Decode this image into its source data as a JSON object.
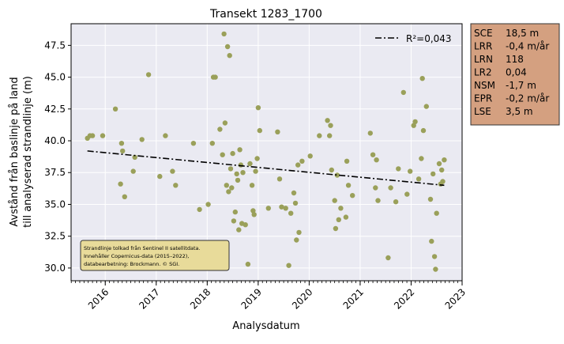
{
  "chart_data": {
    "type": "scatter",
    "title": "Transekt 1283_1700",
    "xlabel": "Analysdatum",
    "ylabel_lines": [
      "Avstånd från baslinje på land",
      "till analyserad strandlinje (m)"
    ],
    "x_domain": [
      "2015-05-01",
      "2023-01-01"
    ],
    "xlim": [
      2015.33,
      2023.0
    ],
    "ylim": [
      29.0,
      49.2
    ],
    "x_ticks": [
      "2016",
      "2017",
      "2018",
      "2019",
      "2020",
      "2021",
      "2022",
      "2023"
    ],
    "y_ticks": [
      "30.0",
      "32.5",
      "35.0",
      "37.5",
      "40.0",
      "42.5",
      "45.0",
      "47.5"
    ],
    "grid": true,
    "series": [
      {
        "type": "scatter",
        "color": "#9aa05a",
        "points": [
          [
            2015.65,
            40.2
          ],
          [
            2015.7,
            40.4
          ],
          [
            2015.75,
            40.4
          ],
          [
            2015.95,
            40.4
          ],
          [
            2016.2,
            42.5
          ],
          [
            2016.3,
            36.6
          ],
          [
            2016.32,
            39.8
          ],
          [
            2016.34,
            39.2
          ],
          [
            2016.38,
            35.6
          ],
          [
            2016.55,
            37.6
          ],
          [
            2016.58,
            38.7
          ],
          [
            2016.72,
            40.1
          ],
          [
            2016.85,
            45.2
          ],
          [
            2017.07,
            37.2
          ],
          [
            2017.18,
            40.4
          ],
          [
            2017.32,
            37.6
          ],
          [
            2017.38,
            36.5
          ],
          [
            2017.73,
            39.8
          ],
          [
            2017.85,
            34.6
          ],
          [
            2018.02,
            35.0
          ],
          [
            2018.1,
            39.8
          ],
          [
            2018.12,
            45.0
          ],
          [
            2018.16,
            45.0
          ],
          [
            2018.25,
            40.9
          ],
          [
            2018.3,
            38.9
          ],
          [
            2018.33,
            48.4
          ],
          [
            2018.35,
            41.4
          ],
          [
            2018.38,
            36.5
          ],
          [
            2018.4,
            47.4
          ],
          [
            2018.42,
            36.0
          ],
          [
            2018.44,
            46.7
          ],
          [
            2018.46,
            37.8
          ],
          [
            2018.48,
            36.3
          ],
          [
            2018.5,
            39.0
          ],
          [
            2018.52,
            33.7
          ],
          [
            2018.55,
            34.4
          ],
          [
            2018.58,
            37.4
          ],
          [
            2018.6,
            36.9
          ],
          [
            2018.62,
            33.0
          ],
          [
            2018.64,
            39.3
          ],
          [
            2018.66,
            38.1
          ],
          [
            2018.68,
            33.5
          ],
          [
            2018.7,
            37.5
          ],
          [
            2018.75,
            33.4
          ],
          [
            2018.8,
            30.3
          ],
          [
            2018.84,
            38.2
          ],
          [
            2018.88,
            36.5
          ],
          [
            2018.9,
            34.5
          ],
          [
            2018.92,
            34.2
          ],
          [
            2018.95,
            37.6
          ],
          [
            2018.98,
            38.6
          ],
          [
            2019.0,
            42.6
          ],
          [
            2019.03,
            40.8
          ],
          [
            2019.2,
            34.7
          ],
          [
            2019.38,
            40.7
          ],
          [
            2019.42,
            37.0
          ],
          [
            2019.46,
            34.8
          ],
          [
            2019.54,
            34.7
          ],
          [
            2019.6,
            30.2
          ],
          [
            2019.64,
            34.3
          ],
          [
            2019.7,
            35.9
          ],
          [
            2019.73,
            35.1
          ],
          [
            2019.75,
            32.2
          ],
          [
            2019.78,
            38.1
          ],
          [
            2019.8,
            32.8
          ],
          [
            2019.86,
            38.4
          ],
          [
            2020.02,
            38.8
          ],
          [
            2020.2,
            40.4
          ],
          [
            2020.36,
            41.6
          ],
          [
            2020.4,
            40.4
          ],
          [
            2020.42,
            41.2
          ],
          [
            2020.44,
            37.7
          ],
          [
            2020.5,
            35.3
          ],
          [
            2020.52,
            33.1
          ],
          [
            2020.55,
            37.3
          ],
          [
            2020.58,
            33.8
          ],
          [
            2020.62,
            34.7
          ],
          [
            2020.72,
            34.0
          ],
          [
            2020.74,
            38.4
          ],
          [
            2020.77,
            36.5
          ],
          [
            2020.85,
            35.7
          ],
          [
            2021.2,
            40.6
          ],
          [
            2021.25,
            38.9
          ],
          [
            2021.3,
            36.3
          ],
          [
            2021.32,
            38.5
          ],
          [
            2021.35,
            35.3
          ],
          [
            2021.55,
            30.8
          ],
          [
            2021.6,
            36.3
          ],
          [
            2021.7,
            35.2
          ],
          [
            2021.75,
            37.8
          ],
          [
            2021.85,
            43.8
          ],
          [
            2021.92,
            35.8
          ],
          [
            2021.98,
            37.6
          ],
          [
            2022.05,
            41.2
          ],
          [
            2022.08,
            41.5
          ],
          [
            2022.15,
            37.0
          ],
          [
            2022.2,
            38.6
          ],
          [
            2022.22,
            44.9
          ],
          [
            2022.24,
            40.8
          ],
          [
            2022.3,
            42.7
          ],
          [
            2022.38,
            35.4
          ],
          [
            2022.4,
            32.1
          ],
          [
            2022.43,
            37.4
          ],
          [
            2022.46,
            30.9
          ],
          [
            2022.48,
            29.9
          ],
          [
            2022.5,
            34.3
          ],
          [
            2022.55,
            38.2
          ],
          [
            2022.58,
            36.6
          ],
          [
            2022.6,
            37.7
          ],
          [
            2022.62,
            36.8
          ],
          [
            2022.65,
            38.5
          ]
        ]
      },
      {
        "type": "line",
        "name": "R²=0,043",
        "style": "dash-dot",
        "color": "#000000",
        "points": [
          [
            2015.65,
            39.2
          ],
          [
            2022.65,
            36.5
          ]
        ]
      }
    ],
    "legend": {
      "position": "top-right",
      "entries": [
        "R²=0,043"
      ]
    },
    "note_lines": [
      "Strandlinje tolkad från Sentinel II satellitdata.",
      "Innehåller Copernicus-data (2015–2022),",
      "databearbetning: Brockmann. © SGI."
    ],
    "note_bg": "#e8db9a",
    "stats_box": {
      "bg": "#d4a080",
      "rows": [
        {
          "key": "SCE",
          "value": "18,5 m"
        },
        {
          "key": "LRR",
          "value": "-0,4 m/år"
        },
        {
          "key": "LRN",
          "value": "118"
        },
        {
          "key": "LR2",
          "value": "0,04"
        },
        {
          "key": "NSM",
          "value": "-1,7 m"
        },
        {
          "key": "EPR",
          "value": "-0,2 m/år"
        },
        {
          "key": "LSE",
          "value": "3,5 m"
        }
      ]
    }
  }
}
